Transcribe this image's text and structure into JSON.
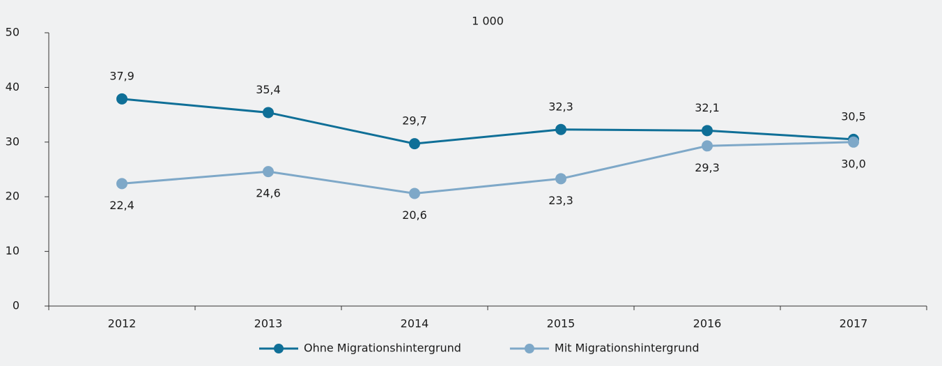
{
  "chart_data": {
    "type": "line",
    "annotation": "1 000",
    "categories": [
      "2012",
      "2013",
      "2014",
      "2015",
      "2016",
      "2017"
    ],
    "series": [
      {
        "name": "Ohne Migrationshintergrund",
        "color": "#0f6f97",
        "values": [
          37.9,
          35.4,
          29.7,
          32.3,
          32.1,
          30.5
        ],
        "value_labels": [
          "37,9",
          "35,4",
          "29,7",
          "32,3",
          "32,1",
          "30,5"
        ],
        "label_position": "above"
      },
      {
        "name": "Mit Migrationshintergrund",
        "color": "#7ea8c8",
        "values": [
          22.4,
          24.6,
          20.6,
          23.3,
          29.3,
          30.0
        ],
        "value_labels": [
          "22,4",
          "24,6",
          "20,6",
          "23,3",
          "29,3",
          "30,0"
        ],
        "label_position": "below"
      }
    ],
    "ylim": [
      0,
      50
    ],
    "yticks": [
      0,
      10,
      20,
      30,
      40,
      50
    ],
    "grid": false,
    "legend": "bottom"
  }
}
